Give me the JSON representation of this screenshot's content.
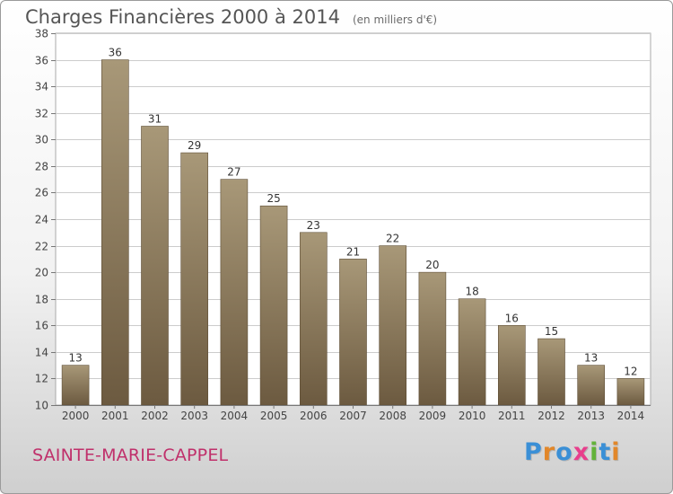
{
  "header": {
    "title": "Charges Financières 2000 à 2014",
    "subtitle": "(en milliers d'€)"
  },
  "footer": {
    "town": "SAINTE-MARIE-CAPPEL",
    "logo": "Proxiti",
    "logo_colors": [
      "#3a8fd6",
      "#e2872a",
      "#3a8fd6",
      "#e83e8c",
      "#63b23a",
      "#3a8fd6",
      "#e2872a"
    ]
  },
  "colors": {
    "bar_top": "#a89878",
    "bar_bottom": "#6c5a40",
    "plot_background": "#ffffff",
    "grid": "#cccccc"
  },
  "chart_data": {
    "type": "bar",
    "title": "Charges Financières 2000 à 2014",
    "subtitle": "(en milliers d'€)",
    "categories": [
      "2000",
      "2001",
      "2002",
      "2003",
      "2004",
      "2005",
      "2006",
      "2007",
      "2008",
      "2009",
      "2010",
      "2011",
      "2012",
      "2013",
      "2014"
    ],
    "values": [
      13,
      36,
      31,
      29,
      27,
      25,
      23,
      21,
      22,
      20,
      18,
      16,
      15,
      13,
      12
    ],
    "ylim": [
      10,
      38
    ],
    "yticks": [
      10,
      12,
      14,
      16,
      18,
      20,
      22,
      24,
      26,
      28,
      30,
      32,
      34,
      36,
      38
    ],
    "grid": true,
    "data_labels": true
  }
}
